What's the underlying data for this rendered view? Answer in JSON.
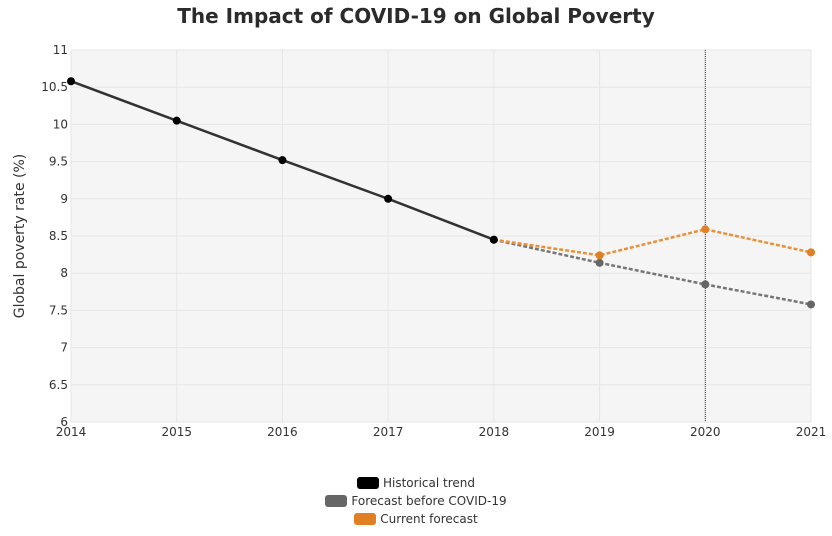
{
  "chart_data": {
    "type": "line",
    "title": "The Impact of COVID-19 on Global Poverty",
    "xlabel": "",
    "ylabel": "Global poverty rate (%)",
    "x": [
      2014,
      2015,
      2016,
      2017,
      2018,
      2019,
      2020,
      2021
    ],
    "x_tick_labels": [
      "2014",
      "2015",
      "2016",
      "2017",
      "2018",
      "2019",
      "2020",
      "2021"
    ],
    "xlim": [
      2014,
      2021
    ],
    "ylim": [
      6,
      11
    ],
    "y_ticks": [
      6,
      6.5,
      7,
      7.5,
      8,
      8.5,
      9,
      9.5,
      10,
      10.5,
      11
    ],
    "y_tick_labels": [
      "6",
      "6.5",
      "7",
      "7.5",
      "8",
      "8.5",
      "9",
      "9.5",
      "10",
      "10.5",
      "11"
    ],
    "grid": true,
    "vertical_reference_line": 2020,
    "legend_position": "bottom-center",
    "series": [
      {
        "name": "Historical trend",
        "color": "#000000",
        "line_color": "#333333",
        "dash": false,
        "x": [
          2014,
          2015,
          2016,
          2017,
          2018
        ],
        "values": [
          10.58,
          10.05,
          9.52,
          9.0,
          8.45
        ]
      },
      {
        "name": "Forecast before COVID-19",
        "color": "#666666",
        "line_color": "#777777",
        "dash": true,
        "x": [
          2018,
          2019,
          2020,
          2021
        ],
        "values": [
          8.45,
          8.14,
          7.85,
          7.58
        ]
      },
      {
        "name": "Current forecast",
        "color": "#E07F23",
        "line_color": "#E8913A",
        "dash": true,
        "x": [
          2018,
          2019,
          2020,
          2021
        ],
        "values": [
          8.45,
          8.24,
          8.59,
          8.28
        ]
      }
    ]
  }
}
